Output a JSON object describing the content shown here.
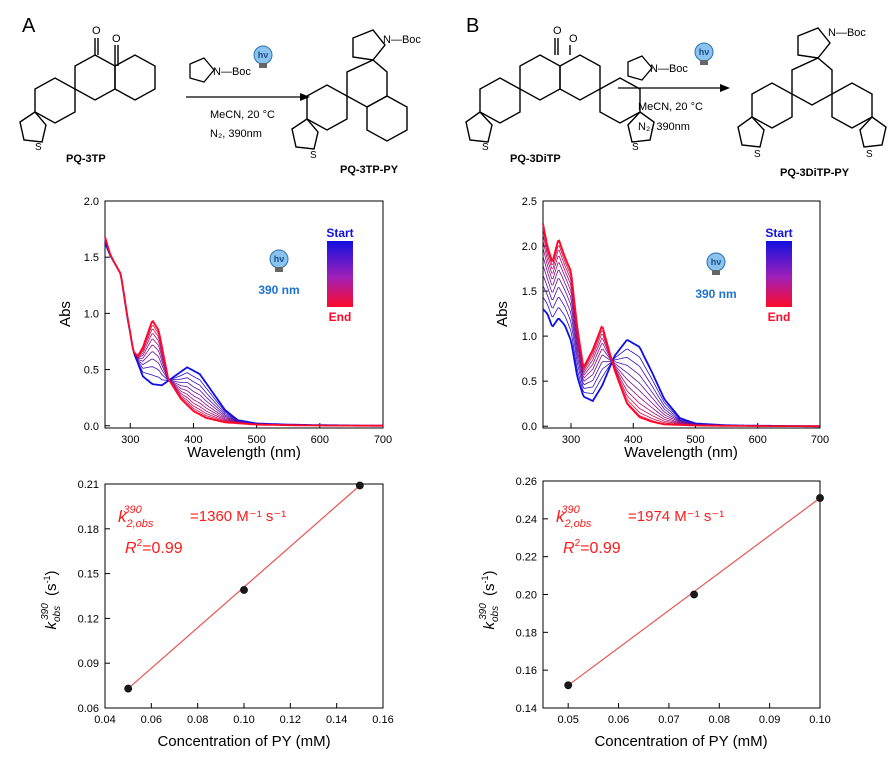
{
  "panels": [
    {
      "letter": "A",
      "reagent": "N—Boc",
      "hv": "hν",
      "conditions": [
        "MeCN, 20 °C",
        "N₂, 390nm"
      ],
      "start_label": "PQ-3TP",
      "product_label": "PQ-3TP-PY",
      "product_boc": "N—Boc"
    },
    {
      "letter": "B",
      "reagent": "N—Boc",
      "hv": "hν",
      "conditions": [
        "MeCN, 20 °C",
        "N₂, 390nm"
      ],
      "start_label": "PQ-3DiTP",
      "product_label": "PQ-3DiTP-PY",
      "product_boc": "N—Boc"
    }
  ],
  "colors": {
    "start": "#1010e0",
    "end": "#ff0a2a",
    "fit_line": "#e85555",
    "annotation": "#ff1a1a",
    "hv_text": "#1e73d2"
  },
  "chart_data": [
    {
      "type": "line",
      "panel": "A",
      "xlabel": "Wavelength (nm)",
      "ylabel": "Abs",
      "xlim": [
        260,
        700
      ],
      "ylim": [
        -0.02,
        2.0
      ],
      "xticks": [
        300,
        400,
        500,
        600,
        700
      ],
      "yticks": [
        "0.0",
        "0.5",
        "1.0",
        "1.5",
        "2.0"
      ],
      "legend": {
        "start": "Start",
        "end": "End",
        "wavelength": "390 nm"
      },
      "n_curves": 12,
      "start_spectrum": {
        "x": [
          260,
          268,
          275,
          285,
          295,
          305,
          320,
          335,
          350,
          370,
          390,
          410,
          430,
          450,
          470,
          500,
          550,
          600,
          700
        ],
        "y": [
          1.63,
          1.52,
          1.45,
          1.35,
          0.98,
          0.66,
          0.44,
          0.37,
          0.36,
          0.44,
          0.52,
          0.46,
          0.3,
          0.14,
          0.05,
          0.02,
          0.01,
          0.005,
          0.0
        ]
      },
      "end_spectrum": {
        "x": [
          260,
          268,
          275,
          285,
          295,
          305,
          312,
          320,
          335,
          345,
          360,
          380,
          400,
          420,
          450,
          500,
          550,
          600,
          700
        ],
        "y": [
          1.68,
          1.53,
          1.45,
          1.35,
          0.99,
          0.66,
          0.62,
          0.7,
          0.94,
          0.85,
          0.42,
          0.24,
          0.13,
          0.07,
          0.03,
          0.01,
          0.005,
          0.002,
          0.0
        ]
      }
    },
    {
      "type": "line",
      "panel": "B",
      "xlabel": "Wavelength (nm)",
      "ylabel": "Abs",
      "xlim": [
        255,
        700
      ],
      "ylim": [
        -0.02,
        2.5
      ],
      "xticks": [
        300,
        400,
        500,
        600,
        700
      ],
      "yticks": [
        "0.0",
        "0.5",
        "1.0",
        "1.5",
        "2.0",
        "2.5"
      ],
      "legend": {
        "start": "Start",
        "end": "End",
        "wavelength": "390 nm"
      },
      "n_curves": 12,
      "start_spectrum": {
        "x": [
          255,
          262,
          270,
          280,
          290,
          300,
          310,
          320,
          335,
          350,
          370,
          390,
          410,
          430,
          450,
          475,
          500,
          550,
          600,
          700
        ],
        "y": [
          1.3,
          1.25,
          1.1,
          1.2,
          1.12,
          0.95,
          0.55,
          0.33,
          0.28,
          0.45,
          0.78,
          0.96,
          0.88,
          0.6,
          0.3,
          0.09,
          0.03,
          0.01,
          0.005,
          0.0
        ]
      },
      "end_spectrum": {
        "x": [
          255,
          262,
          270,
          280,
          290,
          300,
          310,
          320,
          335,
          350,
          370,
          390,
          410,
          430,
          450,
          500,
          550,
          600,
          700
        ],
        "y": [
          2.25,
          2.0,
          1.82,
          2.08,
          1.88,
          1.72,
          1.1,
          0.65,
          0.85,
          1.12,
          0.62,
          0.25,
          0.1,
          0.05,
          0.02,
          0.008,
          0.004,
          0.002,
          0.0
        ]
      }
    },
    {
      "type": "scatter",
      "panel": "A",
      "xlabel": "Concentration of PY (mM)",
      "ylabel": "k_obs^390 (s⁻¹)",
      "xlim": [
        0.04,
        0.16
      ],
      "ylim": [
        0.06,
        0.21
      ],
      "xticks": [
        "0.04",
        "0.06",
        "0.08",
        "0.10",
        "0.12",
        "0.14",
        "0.16"
      ],
      "yticks": [
        "0.06",
        "0.09",
        "0.12",
        "0.15",
        "0.18",
        "0.21"
      ],
      "x": [
        0.05,
        0.1,
        0.15
      ],
      "y": [
        0.073,
        0.139,
        0.209
      ],
      "fit": {
        "x": [
          0.05,
          0.15
        ],
        "y": [
          0.073,
          0.209
        ]
      },
      "annotation_k": "k",
      "annotation_sub": "2,obs",
      "annotation_sup": "390",
      "annotation_value": "=1360 M⁻¹ s⁻¹",
      "annotation_r2": "R",
      "annotation_r2_value": "=0.99"
    },
    {
      "type": "scatter",
      "panel": "B",
      "xlabel": "Concentration of PY (mM)",
      "ylabel": "k_obs^390 (s⁻¹)",
      "xlim": [
        0.045,
        0.1
      ],
      "ylim": [
        0.14,
        0.26
      ],
      "xticks": [
        "0.05",
        "0.06",
        "0.07",
        "0.08",
        "0.09",
        "0.10"
      ],
      "yticks": [
        "0.14",
        "0.16",
        "0.18",
        "0.20",
        "0.22",
        "0.24",
        "0.26"
      ],
      "x": [
        0.05,
        0.075,
        0.1
      ],
      "y": [
        0.152,
        0.2,
        0.251
      ],
      "fit": {
        "x": [
          0.05,
          0.1
        ],
        "y": [
          0.152,
          0.251
        ]
      },
      "annotation_k": "k",
      "annotation_sub": "2,obs",
      "annotation_sup": "390",
      "annotation_value": "=1974 M⁻¹ s⁻¹",
      "annotation_r2": "R",
      "annotation_r2_value": "=0.99"
    }
  ]
}
